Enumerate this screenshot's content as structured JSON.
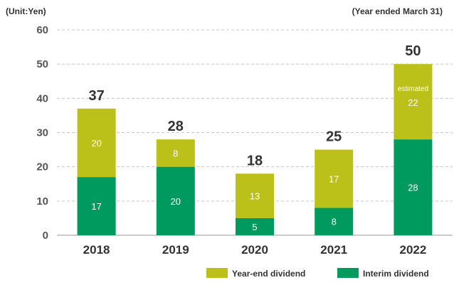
{
  "chart_data": {
    "type": "bar",
    "stacked": true,
    "unit_label": "(Unit:Yen)",
    "period_label": "(Year ended March 31)",
    "categories": [
      "2018",
      "2019",
      "2020",
      "2021",
      "2022"
    ],
    "series": [
      {
        "name": "Interim dividend",
        "color": "#009a5e",
        "values": [
          17,
          20,
          5,
          8,
          28
        ]
      },
      {
        "name": "Year-end dividend",
        "color": "#bcc11a",
        "values": [
          20,
          8,
          13,
          17,
          22
        ]
      }
    ],
    "totals": [
      37,
      28,
      18,
      25,
      50
    ],
    "annotations": [
      {
        "category": "2022",
        "text": "estimated"
      }
    ],
    "ylim": [
      0,
      60
    ],
    "yticks": [
      0,
      10,
      20,
      30,
      40,
      50,
      60
    ],
    "grid": true,
    "legend": [
      {
        "name": "Year-end dividend",
        "color": "#bcc11a"
      },
      {
        "name": "Interim dividend",
        "color": "#009a5e"
      }
    ],
    "legend_position": "bottom-right"
  }
}
